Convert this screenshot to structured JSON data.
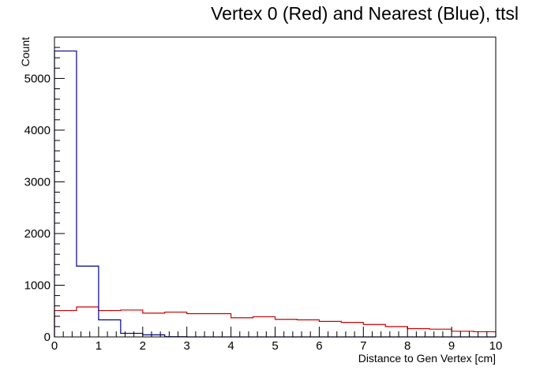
{
  "chart_data": {
    "type": "histogram",
    "title": "Vertex 0 (Red) and Nearest (Blue), ttsl",
    "xlabel": "Distance to Gen Vertex [cm]",
    "ylabel": "Count",
    "xlim": [
      0,
      10
    ],
    "ylim": [
      0,
      5800
    ],
    "x_ticks": [
      "0",
      "1",
      "2",
      "3",
      "4",
      "5",
      "6",
      "7",
      "8",
      "9",
      "10"
    ],
    "y_ticks": [
      "0",
      "1000",
      "2000",
      "3000",
      "4000",
      "5000"
    ],
    "bin_edges": [
      0,
      0.5,
      1,
      1.5,
      2,
      2.5,
      3,
      3.5,
      4,
      4.5,
      5,
      5.5,
      6,
      6.5,
      7,
      7.5,
      8,
      8.5,
      9,
      9.5,
      10
    ],
    "grid": false,
    "series": [
      {
        "color": "#cc0000",
        "values": [
          510,
          580,
          510,
          520,
          460,
          480,
          450,
          450,
          370,
          390,
          340,
          330,
          300,
          280,
          240,
          200,
          160,
          150,
          110,
          100
        ]
      },
      {
        "color": "#000088",
        "values": [
          5530,
          1370,
          330,
          70,
          40,
          5,
          0,
          0,
          0,
          0,
          0,
          0,
          0,
          0,
          0,
          0,
          0,
          0,
          0,
          0
        ]
      }
    ]
  }
}
